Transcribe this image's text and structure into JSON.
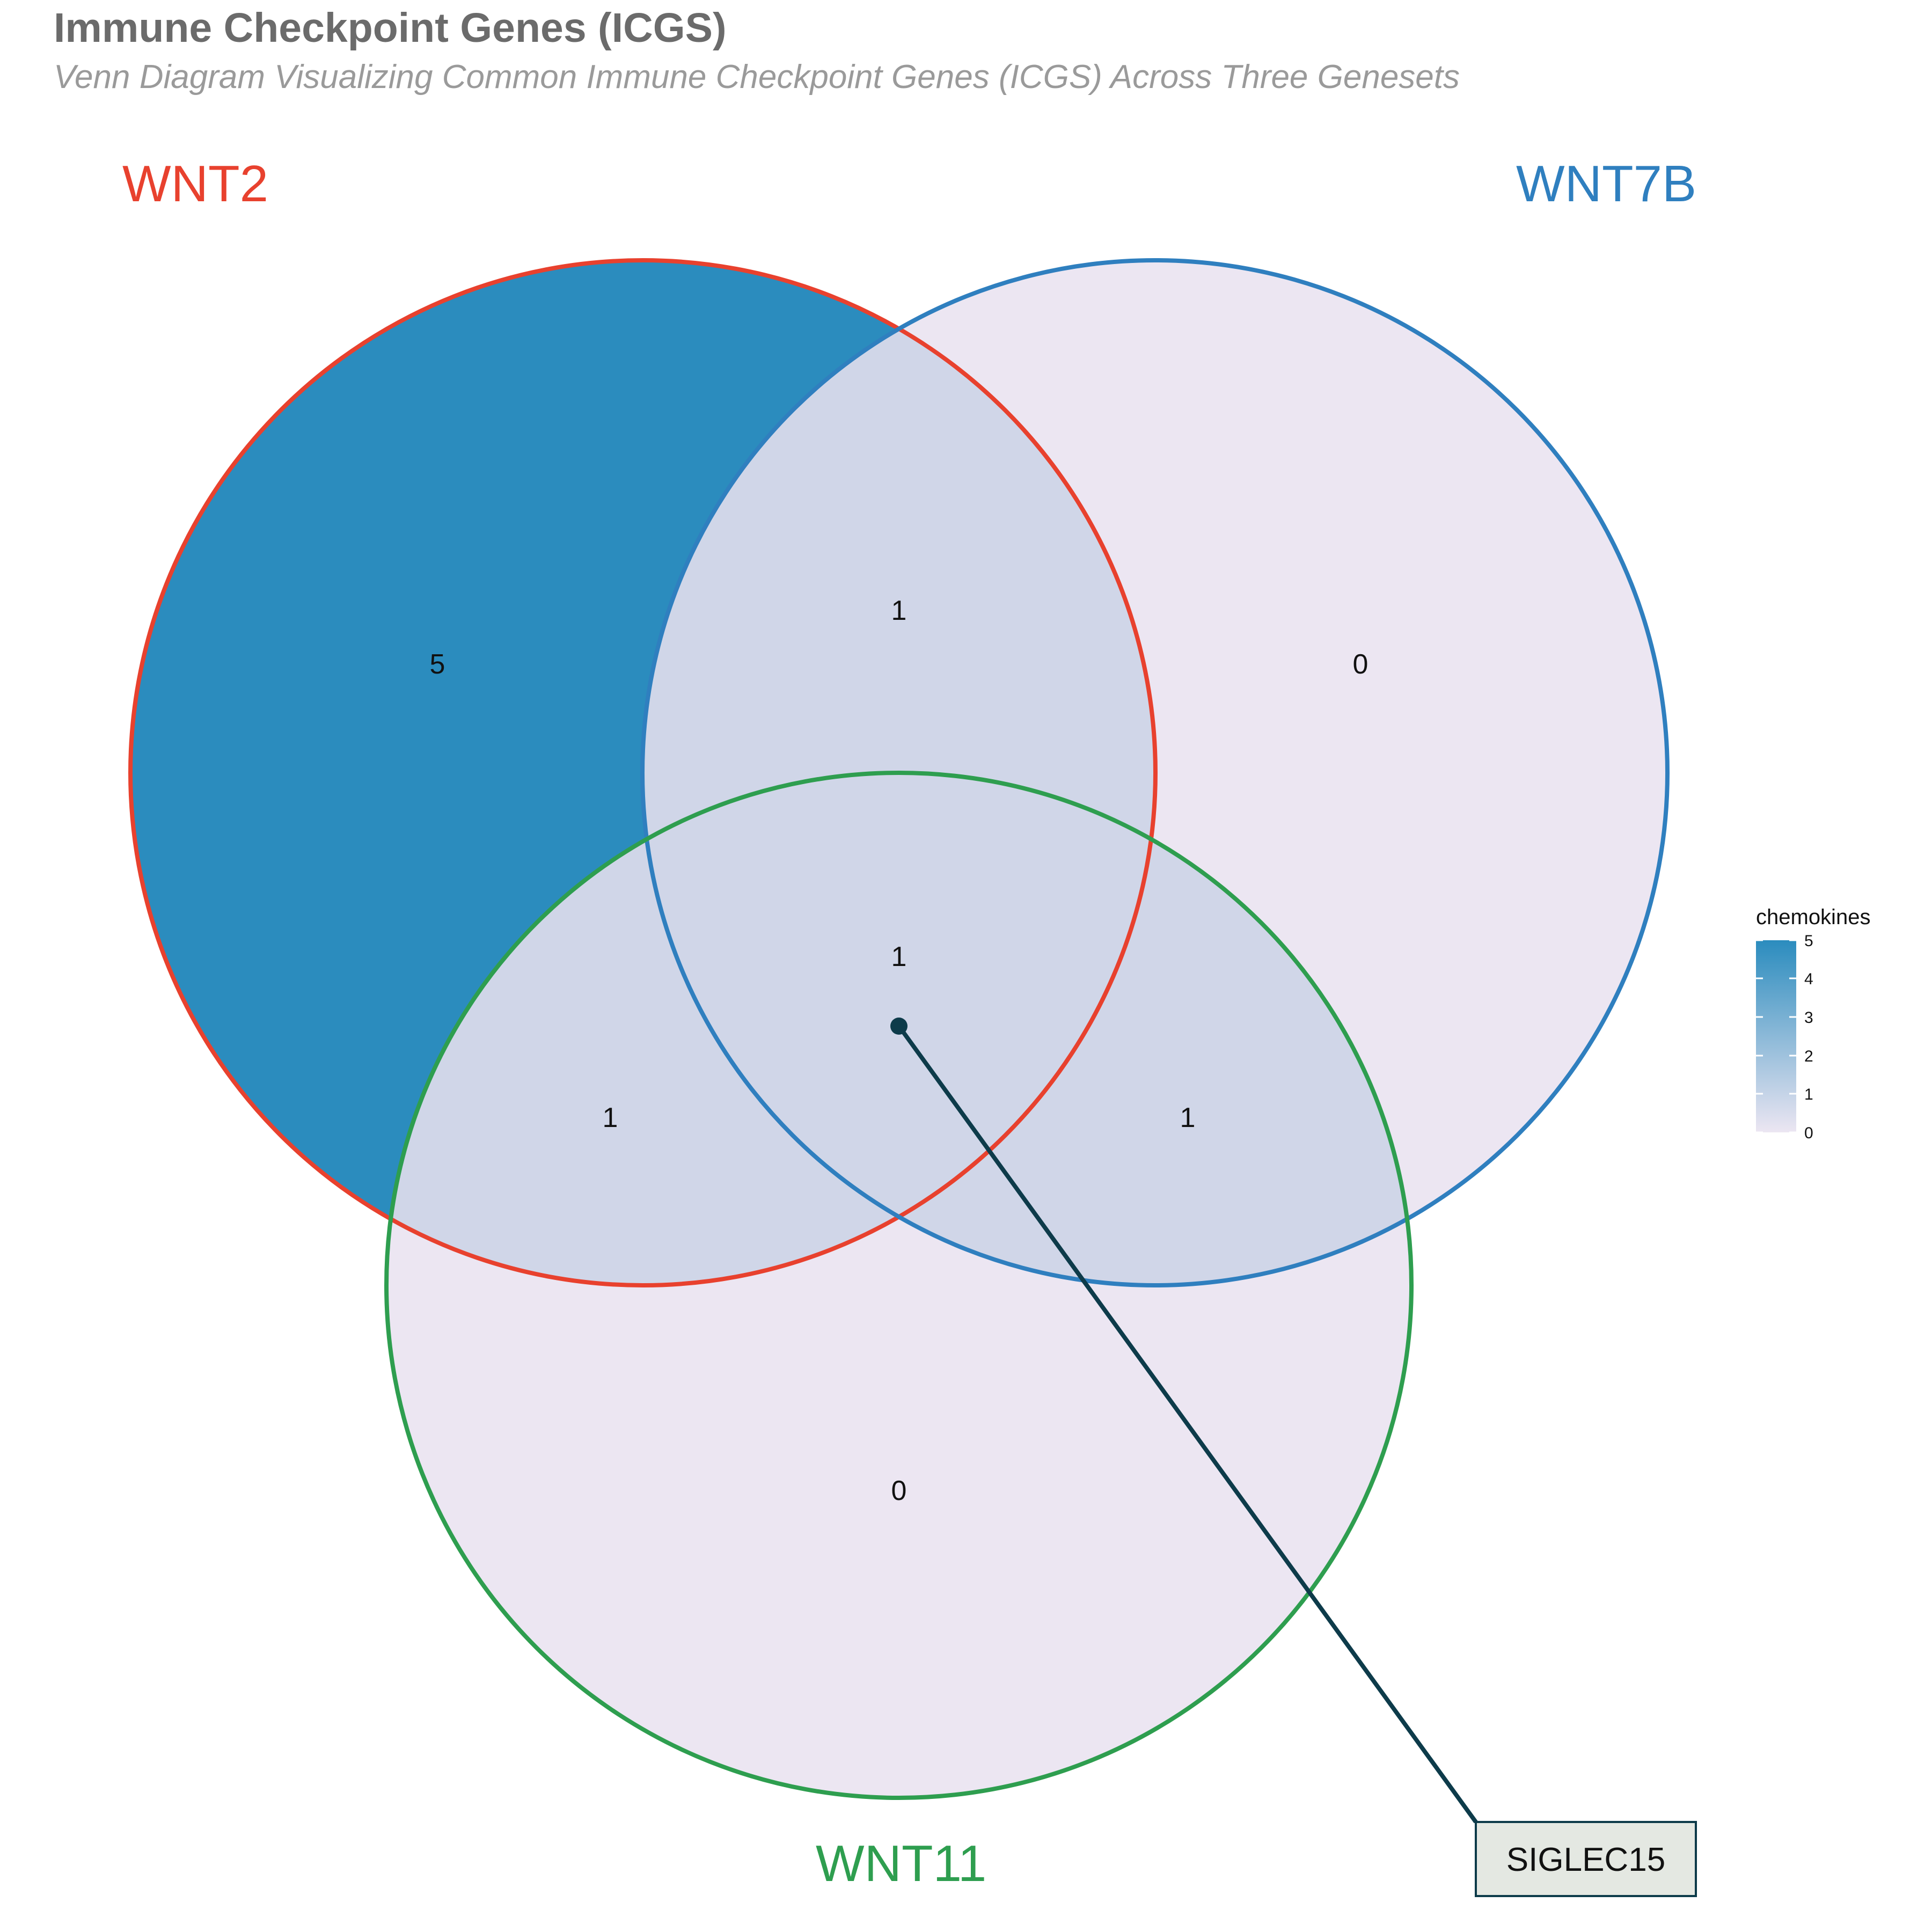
{
  "title": "Immune Checkpoint Genes (ICGS)",
  "subtitle": "Venn Diagram Visualizing Common Immune Checkpoint Genes (ICGS) Across Three Genesets",
  "sets": [
    {
      "name": "WNT2",
      "color": "#e8412e"
    },
    {
      "name": "WNT7B",
      "color": "#2f7fbf"
    },
    {
      "name": "WNT11",
      "color": "#2e9e4f"
    }
  ],
  "regions": {
    "wnt2_only": 5,
    "wnt7b_only": 0,
    "wnt11_only": 0,
    "wnt2_wnt7b": 1,
    "wnt2_wnt11": 1,
    "wnt7b_wnt11": 1,
    "all_three": 1
  },
  "legend": {
    "title": "chemokines",
    "ticks": [
      "0",
      "1",
      "2",
      "3",
      "4",
      "5"
    ],
    "low_color": "#ece6f2",
    "high_color": "#2b8cbe"
  },
  "callout": {
    "label": "SIGLEC15",
    "line_color": "#0d3b4a",
    "box_fill": "#e4e8e2"
  }
}
